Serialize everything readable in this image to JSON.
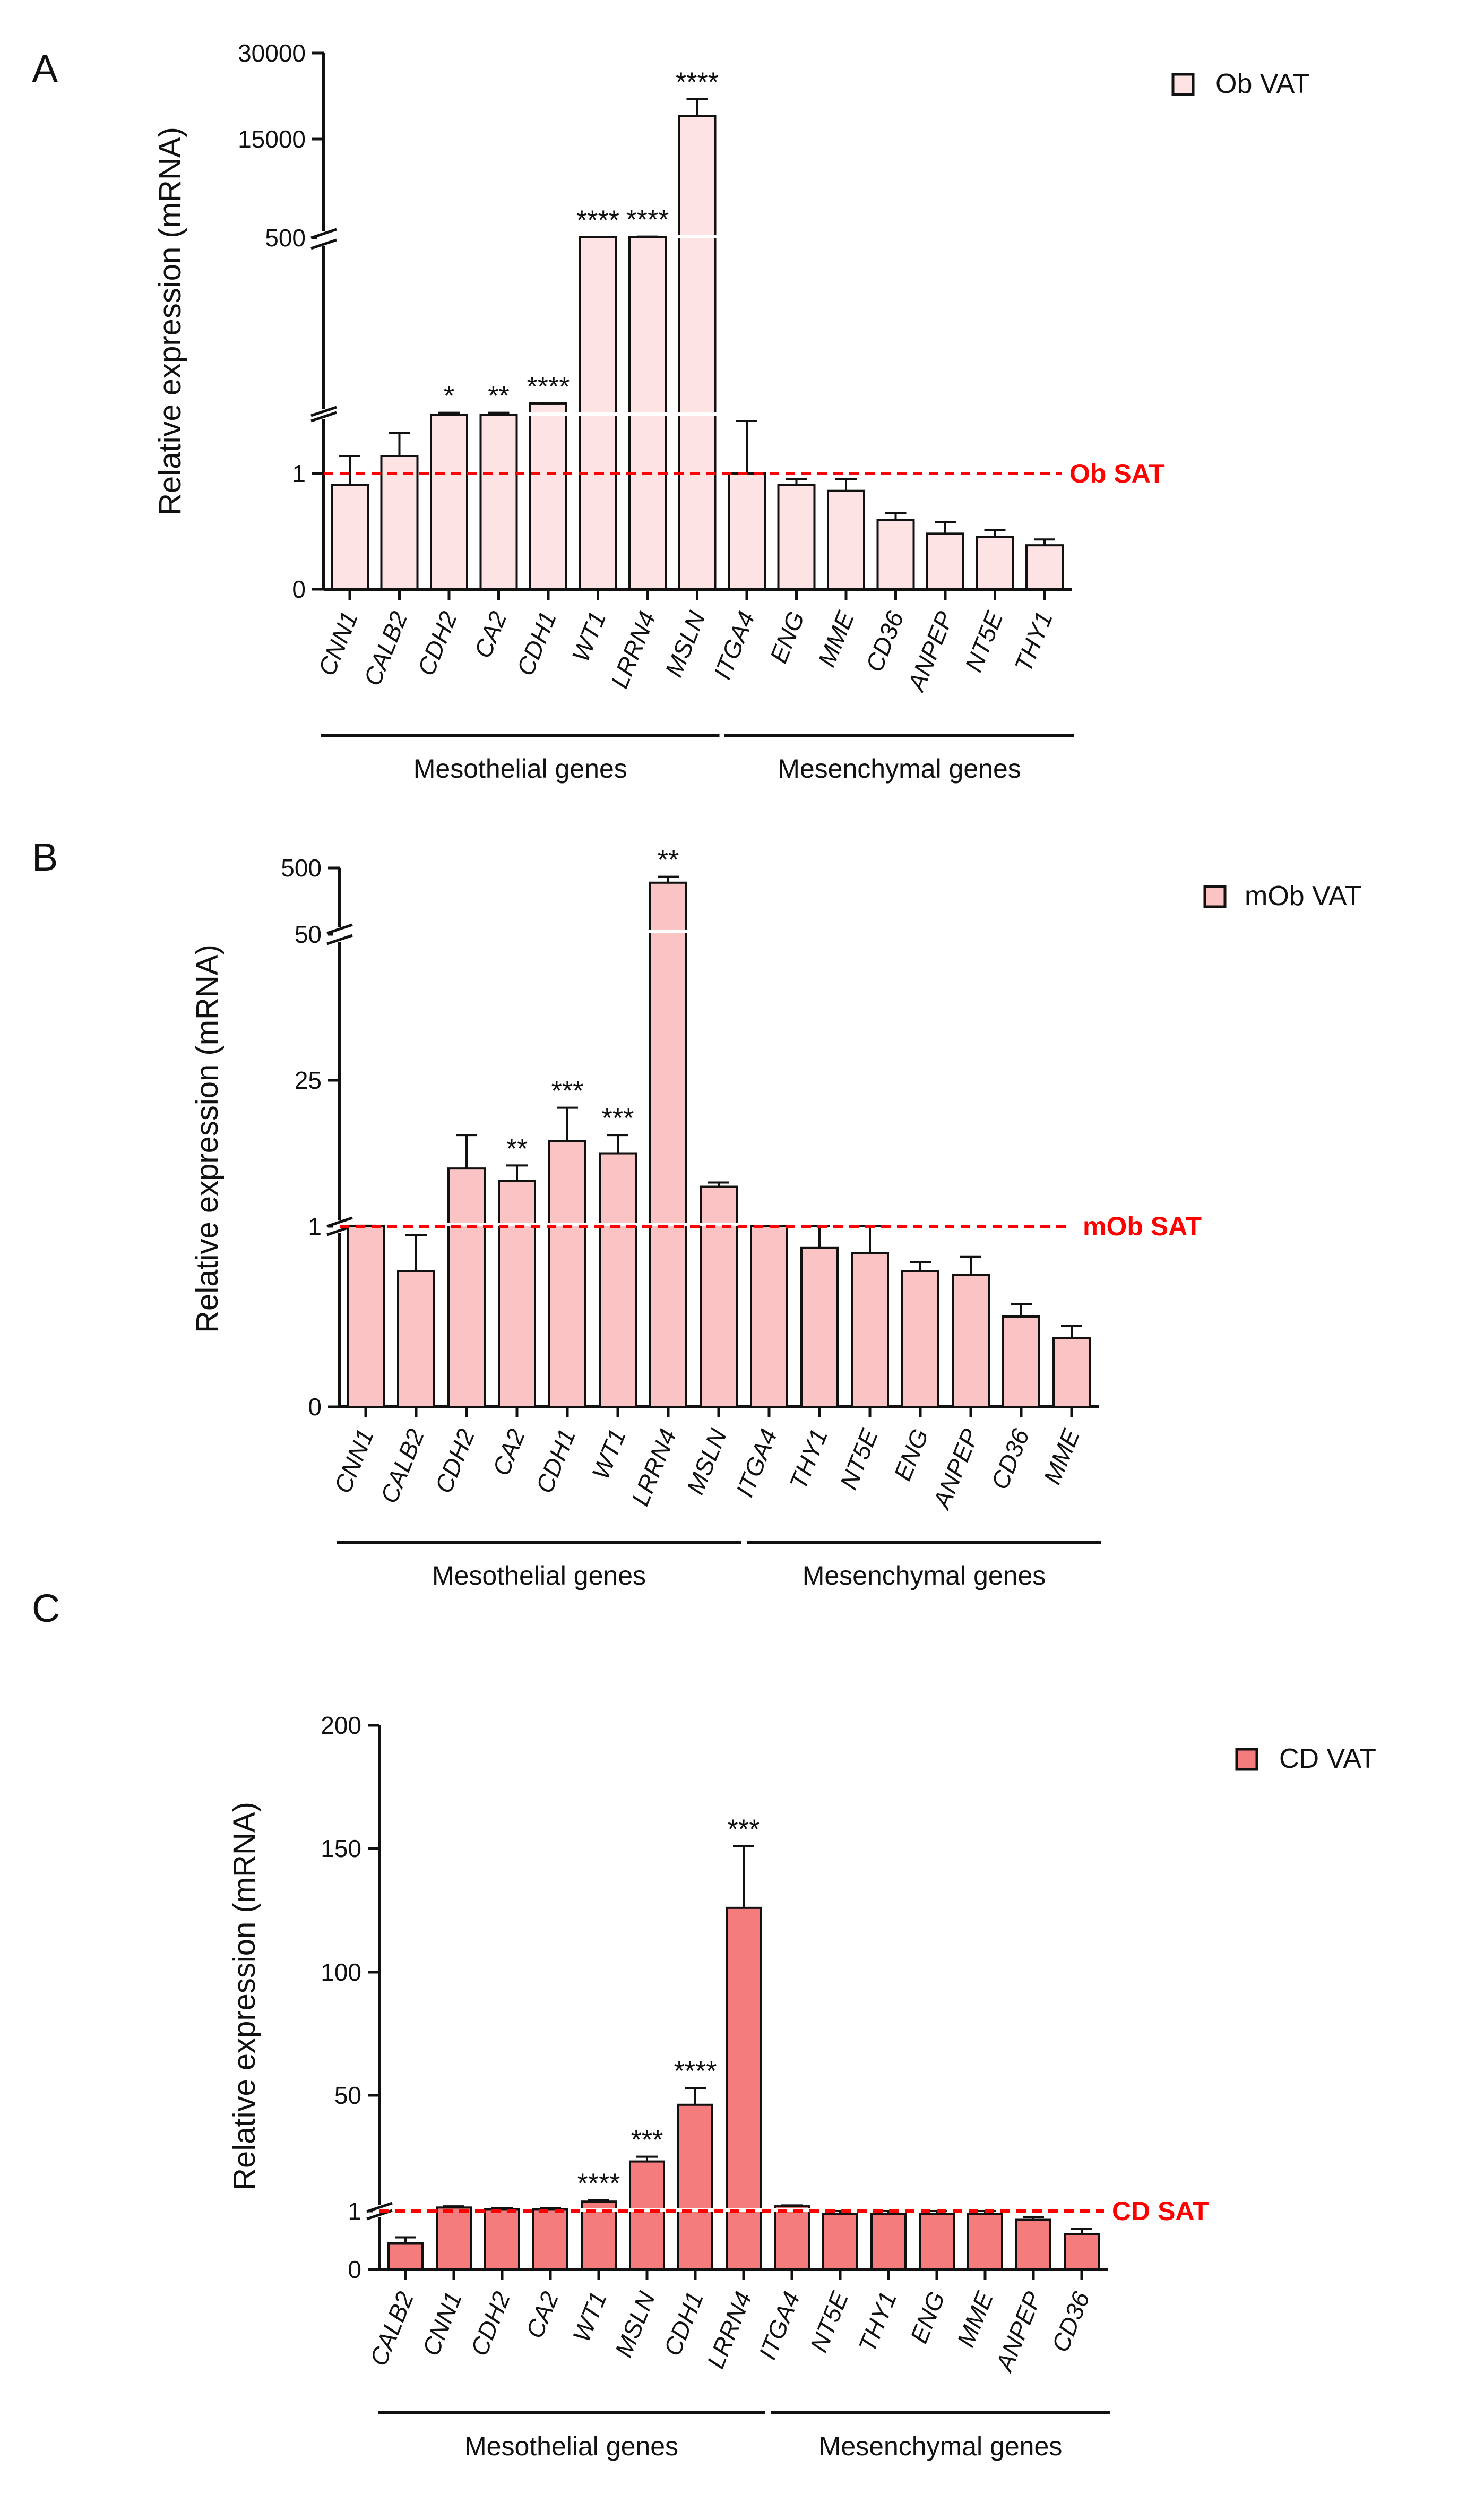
{
  "chart_data": [
    {
      "panel": "A",
      "type": "bar",
      "ylabel": "Relative expression (mRNA)",
      "legend": "Ob VAT",
      "bar_color": "#fde3e3",
      "reference_label": "Ob SAT",
      "reference_value": 1,
      "broken_axis": true,
      "ytick_labels": [
        "0",
        "1",
        "500",
        "15000",
        "30000"
      ],
      "categories": [
        "CNN1",
        "CALB2",
        "CDH2",
        "CA2",
        "CDH1",
        "WT1",
        "LRRN4",
        "MSLN",
        "ITGA4",
        "ENG",
        "MME",
        "CD36",
        "ANPEP",
        "NT5E",
        "THY1"
      ],
      "values": [
        0.9,
        1.15,
        1.5,
        1.5,
        1.7,
        600,
        650,
        19000,
        1.0,
        0.9,
        0.85,
        0.6,
        0.48,
        0.45,
        0.38
      ],
      "errors": [
        0.25,
        0.2,
        0.02,
        0.02,
        0.06,
        30,
        40,
        3000,
        0.45,
        0.05,
        0.1,
        0.06,
        0.1,
        0.06,
        0.05
      ],
      "significance": [
        "",
        "",
        "*",
        "**",
        "****",
        "****",
        "****",
        "****",
        "",
        "",
        "",
        "",
        "",
        "",
        ""
      ],
      "groups": [
        {
          "label": "Mesothelial genes",
          "count": 8
        },
        {
          "label": "Mesenchymal genes",
          "count": 7
        }
      ]
    },
    {
      "panel": "B",
      "type": "bar",
      "ylabel": "Relative expression (mRNA)",
      "legend": "mOb VAT",
      "bar_color": "#fac4c4",
      "reference_label": "mOb SAT",
      "reference_value": 1,
      "broken_axis": true,
      "ytick_labels": [
        "0",
        "1",
        "25",
        "50",
        "500"
      ],
      "categories": [
        "CNN1",
        "CALB2",
        "CDH2",
        "CA2",
        "CDH1",
        "WT1",
        "LRRN4",
        "MSLN",
        "ITGA4",
        "THY1",
        "NT5E",
        "ENG",
        "ANPEP",
        "CD36",
        "MME"
      ],
      "values": [
        1.05,
        0.75,
        10.5,
        8.5,
        15.0,
        13.0,
        400,
        7.5,
        1.02,
        0.88,
        0.85,
        0.75,
        0.73,
        0.5,
        0.38
      ],
      "errors": [
        0.05,
        0.2,
        5.5,
        2.5,
        5.5,
        3.0,
        40,
        0.7,
        0.03,
        0.15,
        0.15,
        0.05,
        0.1,
        0.07,
        0.07
      ],
      "significance": [
        "",
        "",
        "",
        "**",
        "***",
        "***",
        "**",
        "",
        "",
        "",
        "",
        "",
        "",
        "",
        ""
      ],
      "groups": [
        {
          "label": "Mesothelial genes",
          "count": 8
        },
        {
          "label": "Mesenchymal genes",
          "count": 7
        }
      ]
    },
    {
      "panel": "C",
      "type": "bar",
      "ylabel": "Relative expression (mRNA)",
      "legend": "CD VAT",
      "bar_color": "#f47c7c",
      "reference_label": "CD SAT",
      "reference_value": 1,
      "broken_axis": true,
      "ytick_labels": [
        "0",
        "1",
        "50",
        "100",
        "150",
        "200"
      ],
      "categories": [
        "CALB2",
        "CNN1",
        "CDH2",
        "CA2",
        "WT1",
        "MSLN",
        "CDH1",
        "LRRN4",
        "ITGA4",
        "NT5E",
        "THY1",
        "ENG",
        "MME",
        "ANPEP",
        "CD36"
      ],
      "values": [
        0.45,
        2.5,
        1.8,
        1.8,
        5.0,
        22.0,
        46.0,
        126.0,
        3.0,
        0.95,
        0.95,
        0.95,
        0.95,
        0.85,
        0.6
      ],
      "errors": [
        0.1,
        0.5,
        0.4,
        0.4,
        0.6,
        2.0,
        7.0,
        25.0,
        0.4,
        0.05,
        0.05,
        0.05,
        0.05,
        0.05,
        0.1
      ],
      "significance": [
        "",
        "",
        "",
        "",
        "****",
        "***",
        "****",
        "***",
        "",
        "",
        "",
        "",
        "",
        "",
        ""
      ],
      "groups": [
        {
          "label": "Mesothelial genes",
          "count": 8
        },
        {
          "label": "Mesenchymal genes",
          "count": 7
        }
      ]
    }
  ]
}
